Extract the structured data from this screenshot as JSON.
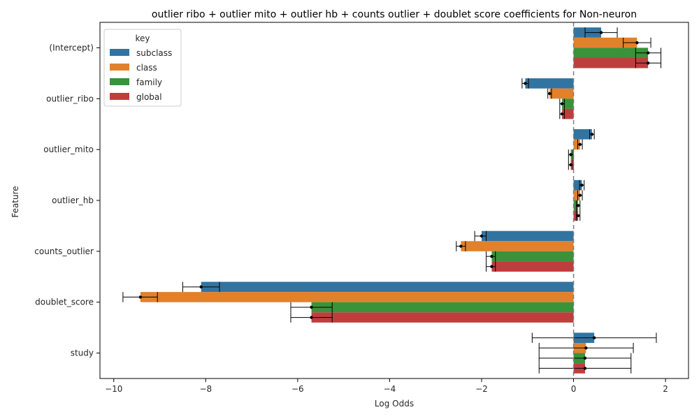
{
  "chart_data": {
    "type": "bar",
    "orientation": "horizontal",
    "title": "outlier ribo + outlier mito + outlier hb + counts outlier + doublet score coefficients for Non-neuron",
    "xlabel": "Log Odds",
    "ylabel": "Feature",
    "xlim": [
      -10.3,
      2.5
    ],
    "xticks": [
      -10,
      -8,
      -6,
      -4,
      -2,
      0,
      2
    ],
    "xtick_labels": [
      "−10",
      "−8",
      "−6",
      "−4",
      "−2",
      "0",
      "2"
    ],
    "reference_line_x": 0,
    "grid": false,
    "legend": {
      "title": "key",
      "position": "top-left"
    },
    "categories": [
      "(Intercept)",
      "outlier_ribo",
      "outlier_mito",
      "outlier_hb",
      "counts_outlier",
      "doublet_score",
      "study"
    ],
    "series": [
      {
        "name": "subclass",
        "color": "#3274a1",
        "values": [
          0.6,
          -1.05,
          0.4,
          0.18,
          -2.0,
          -8.1,
          0.45
        ],
        "ci_low": [
          0.25,
          -1.12,
          0.35,
          0.13,
          -2.15,
          -8.5,
          -0.9
        ],
        "ci_high": [
          0.95,
          -0.98,
          0.45,
          0.23,
          -1.9,
          -7.7,
          1.8
        ]
      },
      {
        "name": "class",
        "color": "#e1812c",
        "values": [
          1.38,
          -0.52,
          0.14,
          0.14,
          -2.45,
          -9.42,
          0.27
        ],
        "ci_low": [
          1.08,
          -0.56,
          0.09,
          0.09,
          -2.55,
          -9.8,
          -0.75
        ],
        "ci_high": [
          1.68,
          -0.48,
          0.19,
          0.19,
          -2.35,
          -9.05,
          1.3
        ]
      },
      {
        "name": "family",
        "color": "#3a923a",
        "values": [
          1.62,
          -0.25,
          -0.06,
          0.1,
          -1.78,
          -5.7,
          0.25
        ],
        "ci_low": [
          1.35,
          -0.3,
          -0.11,
          0.06,
          -1.9,
          -6.15,
          -0.75
        ],
        "ci_high": [
          1.9,
          -0.2,
          -0.01,
          0.14,
          -1.7,
          -5.25,
          1.25
        ]
      },
      {
        "name": "global",
        "color": "#c03d3e",
        "values": [
          1.62,
          -0.25,
          -0.06,
          0.1,
          -1.78,
          -5.7,
          0.25
        ],
        "ci_low": [
          1.35,
          -0.3,
          -0.11,
          0.06,
          -1.9,
          -6.15,
          -0.75
        ],
        "ci_high": [
          1.9,
          -0.2,
          -0.01,
          0.14,
          -1.7,
          -5.25,
          1.25
        ]
      }
    ]
  }
}
